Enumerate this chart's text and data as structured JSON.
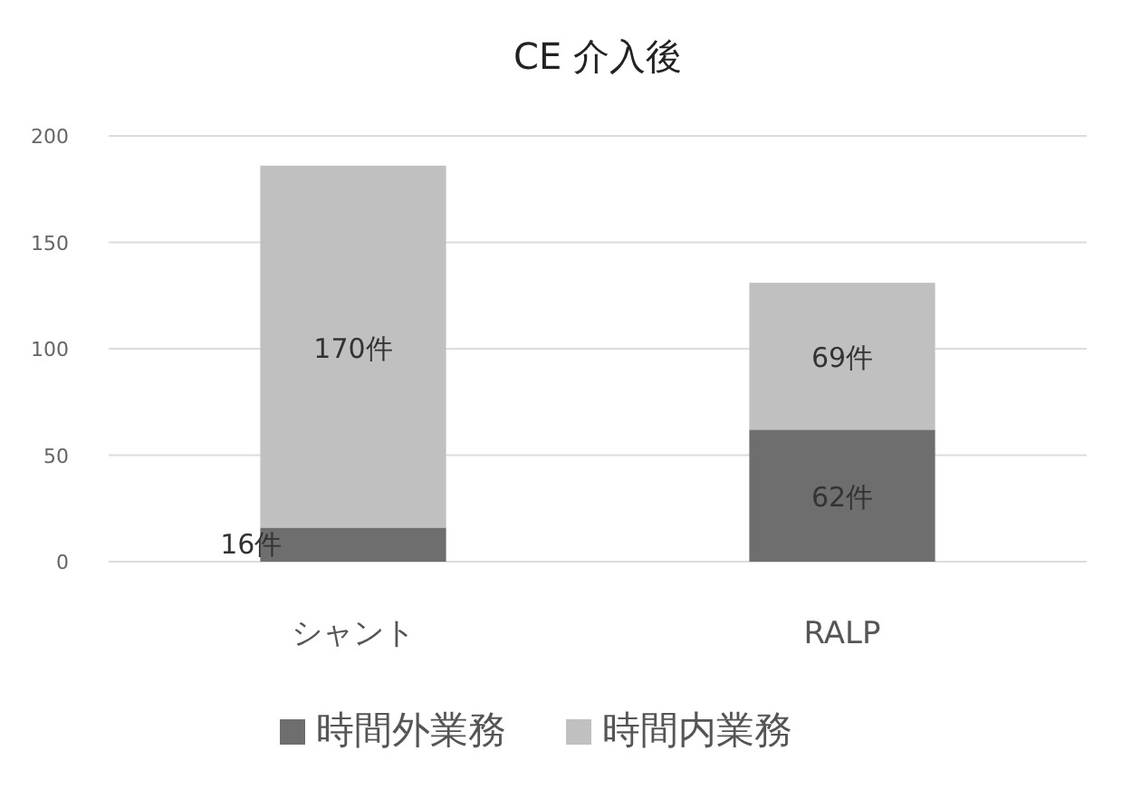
{
  "chart_data": {
    "type": "bar",
    "title": "CE 介入後",
    "categories": [
      "シャント",
      "RALP"
    ],
    "stacked": true,
    "series": [
      {
        "name": "時間外業務",
        "color": "#6e6e6e",
        "values": [
          16,
          62
        ],
        "value_labels": [
          "16件",
          "62件"
        ]
      },
      {
        "name": "時間内業務",
        "color": "#c0c0c0",
        "values": [
          170,
          69
        ],
        "value_labels": [
          "170件",
          "69件"
        ]
      }
    ],
    "ylim": [
      0,
      200
    ],
    "yticks": [
      0,
      50,
      100,
      150,
      200
    ],
    "grid": "y",
    "legend": "bottom"
  }
}
